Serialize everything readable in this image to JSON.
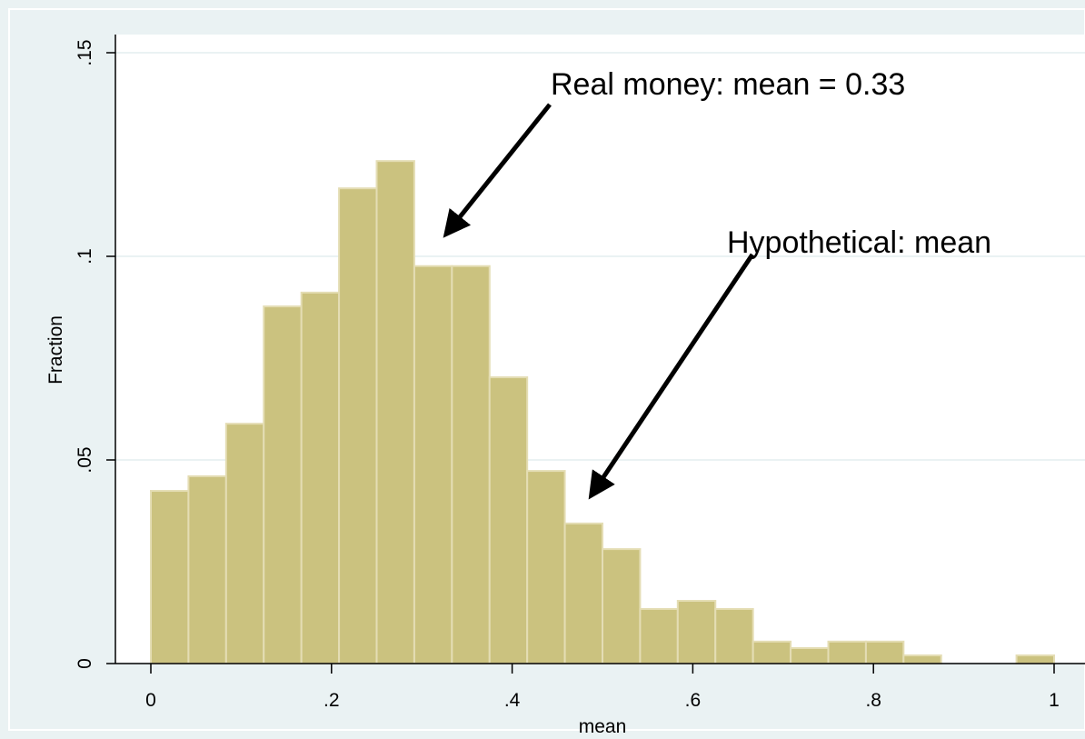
{
  "chart_data": {
    "type": "histogram",
    "xlabel": "mean",
    "ylabel": "Fraction",
    "bins": [
      0,
      0.041667,
      0.083333,
      0.125,
      0.166667,
      0.208333,
      0.25,
      0.291667,
      0.333333,
      0.375,
      0.416667,
      0.458333,
      0.5,
      0.541667,
      0.583333,
      0.625,
      0.666667,
      0.708333,
      0.75,
      0.791667,
      0.833333,
      0.875,
      0.916667,
      0.958333,
      1
    ],
    "counts": [
      0.0424,
      0.046,
      0.0589,
      0.0877,
      0.0911,
      0.1167,
      0.1234,
      0.0976,
      0.0976,
      0.0703,
      0.0473,
      0.0344,
      0.0281,
      0.0134,
      0.0154,
      0.0134,
      0.0054,
      0.0038,
      0.0054,
      0.0054,
      0.002,
      0,
      0,
      0.002
    ],
    "color": "#cbc27f",
    "xlim": [
      0,
      1
    ],
    "ylim": [
      0,
      0.15
    ],
    "xticks": [
      0,
      {
        "value": 0.2,
        "label": ".2"
      },
      {
        "value": 0.4,
        "label": ".4"
      },
      {
        "value": 0.6,
        "label": ".6"
      },
      {
        "value": 0.8,
        "label": ".8"
      },
      1
    ],
    "yticks": [
      0,
      {
        "value": 0.05,
        "label": ".05"
      },
      {
        "value": 0.1,
        "label": ".1"
      },
      {
        "value": 0.15,
        "label": ".15"
      }
    ],
    "grid": true,
    "annotations": [
      "Real money: mean = 0.33",
      "Hypothetical: mean"
    ]
  }
}
